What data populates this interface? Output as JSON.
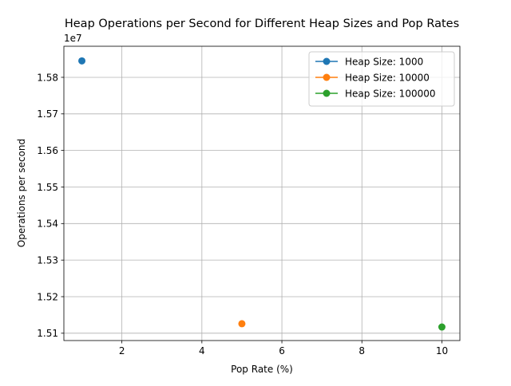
{
  "chart_data": {
    "type": "line",
    "title": "Heap Operations per Second for Different Heap Sizes and Pop Rates",
    "xlabel": "Pop Rate (%)",
    "ylabel": "Operations per second",
    "y_offset_label": "1e7",
    "xlim": [
      0.55,
      10.45
    ],
    "ylim": [
      15080000,
      15885000
    ],
    "x_ticks": [
      2,
      4,
      6,
      8,
      10
    ],
    "x_tick_labels": [
      "2",
      "4",
      "6",
      "8",
      "10"
    ],
    "y_ticks": [
      15100000,
      15200000,
      15300000,
      15400000,
      15500000,
      15600000,
      15700000,
      15800000
    ],
    "y_tick_labels": [
      "1.51",
      "1.52",
      "1.53",
      "1.54",
      "1.55",
      "1.56",
      "1.57",
      "1.58"
    ],
    "grid": true,
    "legend_position": "top-right",
    "series": [
      {
        "name": "Heap Size: 1000",
        "color": "#1f77b4",
        "x": [
          1
        ],
        "y": [
          15845000
        ]
      },
      {
        "name": "Heap Size: 10000",
        "color": "#ff7f0e",
        "x": [
          5
        ],
        "y": [
          15126000
        ]
      },
      {
        "name": "Heap Size: 100000",
        "color": "#2ca02c",
        "x": [
          10
        ],
        "y": [
          15117000
        ]
      }
    ]
  }
}
